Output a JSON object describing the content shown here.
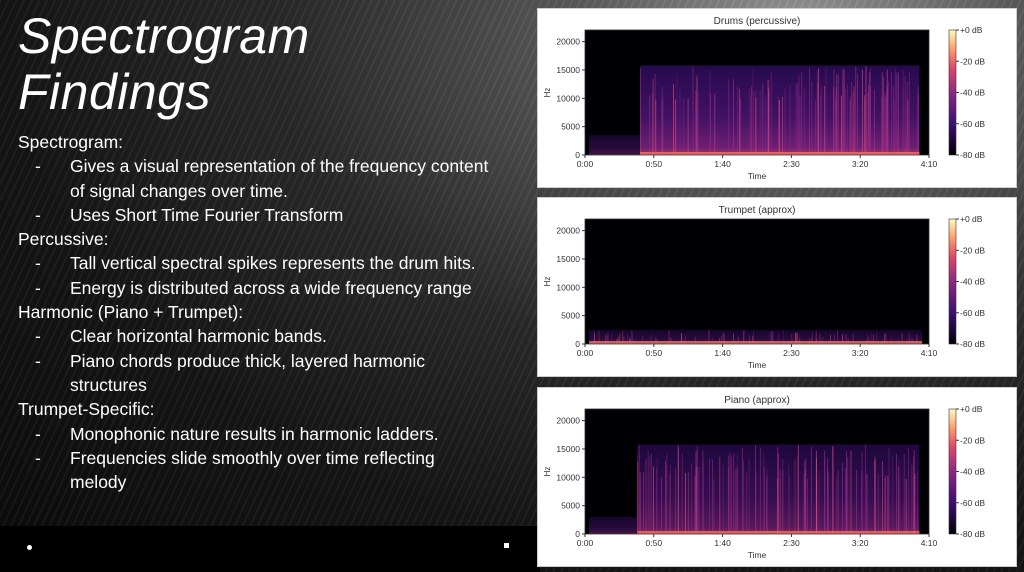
{
  "slide": {
    "title_line1": "Spectrogram",
    "title_line2": "Findings",
    "sections": [
      {
        "heading": "Spectrogram:",
        "items": [
          "Gives a visual representation of the frequency content of signal changes over time.",
          "Uses Short Time Fourier Transform"
        ]
      },
      {
        "heading": "Percussive:",
        "items": [
          "Tall vertical spectral spikes represents the drum hits.",
          "Energy is distributed across a wide frequency range"
        ]
      },
      {
        "heading": "Harmonic (Piano + Trumpet):",
        "items": [
          "Clear horizontal harmonic bands.",
          "Piano chords produce thick, layered harmonic structures"
        ]
      },
      {
        "heading": "Trumpet-Specific:",
        "items": [
          "Monophonic nature results in harmonic ladders.",
          "Frequencies slide smoothly over time reflecting melody"
        ]
      }
    ],
    "dash": "-"
  },
  "chart_data": [
    {
      "type": "heatmap",
      "title": "Drums (percussive)",
      "xlabel": "Time",
      "ylabel": "Hz",
      "xlim_seconds": [
        0,
        250
      ],
      "ylim": [
        0,
        22050
      ],
      "xticks": [
        "0:00",
        "0:50",
        "1:40",
        "2:30",
        "3:20",
        "4:10"
      ],
      "yticks": [
        "0",
        "5000",
        "10000",
        "15000",
        "20000"
      ],
      "colorbar_ticks": [
        "+0 dB",
        "-20 dB",
        "-40 dB",
        "-60 dB",
        "-80 dB"
      ],
      "clim_db": [
        -80,
        0
      ],
      "active_region": {
        "start_s": 40,
        "end_s": 243,
        "max_hz": 15800
      },
      "intro_region": {
        "start_s": 3,
        "end_s": 40,
        "max_hz": 3500
      },
      "density": 0.9
    },
    {
      "type": "heatmap",
      "title": "Trumpet (approx)",
      "xlabel": "Time",
      "ylabel": "Hz",
      "xlim_seconds": [
        0,
        250
      ],
      "ylim": [
        0,
        22050
      ],
      "xticks": [
        "0:00",
        "0:50",
        "1:40",
        "2:30",
        "3:20",
        "4:10"
      ],
      "yticks": [
        "0",
        "5000",
        "10000",
        "15000",
        "20000"
      ],
      "colorbar_ticks": [
        "+0 dB",
        "-20 dB",
        "-40 dB",
        "-60 dB",
        "-80 dB"
      ],
      "clim_db": [
        -80,
        0
      ],
      "active_region": {
        "start_s": 3,
        "end_s": 245,
        "max_hz": 2500
      },
      "intro_region": {
        "start_s": 0,
        "end_s": 0,
        "max_hz": 0
      },
      "density": 0.5
    },
    {
      "type": "heatmap",
      "title": "Piano (approx)",
      "xlabel": "Time",
      "ylabel": "Hz",
      "xlim_seconds": [
        0,
        250
      ],
      "ylim": [
        0,
        22050
      ],
      "xticks": [
        "0:00",
        "0:50",
        "1:40",
        "2:30",
        "3:20",
        "4:10"
      ],
      "yticks": [
        "0",
        "5000",
        "10000",
        "15000",
        "20000"
      ],
      "colorbar_ticks": [
        "+0 dB",
        "-20 dB",
        "-40 dB",
        "-60 dB",
        "-80 dB"
      ],
      "clim_db": [
        -80,
        0
      ],
      "active_region": {
        "start_s": 38,
        "end_s": 243,
        "max_hz": 15800
      },
      "intro_region": {
        "start_s": 3,
        "end_s": 38,
        "max_hz": 3000
      },
      "density": 0.7
    }
  ],
  "colors": {
    "plot_bg": "#000004",
    "low": "#3b0f70",
    "mid": "#8c2981",
    "high": "#de4968",
    "peak": "#fe9f6d",
    "top": "#fcfdbf"
  }
}
